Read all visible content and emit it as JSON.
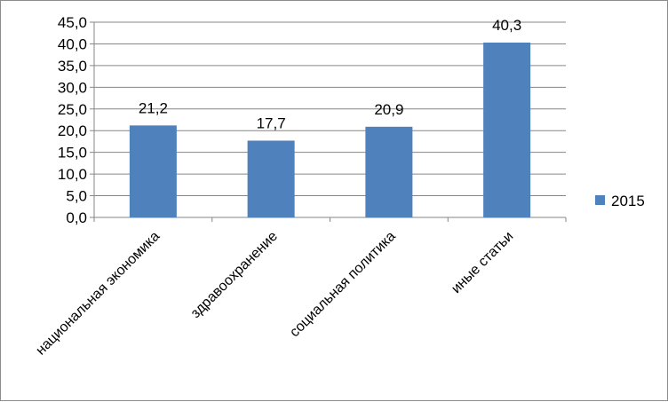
{
  "chart_data": {
    "type": "bar",
    "categories": [
      "национальная экономика",
      "здравоохранение",
      "социальная политика",
      "иные статьи"
    ],
    "series": [
      {
        "name": "2015",
        "values": [
          21.2,
          17.7,
          20.9,
          40.3
        ],
        "data_labels": [
          "21,2",
          "17,7",
          "20,9",
          "40,3"
        ],
        "color": "#4f81bd"
      }
    ],
    "ylim": [
      0,
      45
    ],
    "yticks": [
      0,
      5,
      10,
      15,
      20,
      25,
      30,
      35,
      40,
      45
    ],
    "ytick_labels": [
      "0,0",
      "5,0",
      "10,0",
      "15,0",
      "20,0",
      "25,0",
      "30,0",
      "35,0",
      "40,0",
      "45,0"
    ],
    "grid": true,
    "legend_position": "right",
    "title": "",
    "xlabel": "",
    "ylabel": ""
  }
}
